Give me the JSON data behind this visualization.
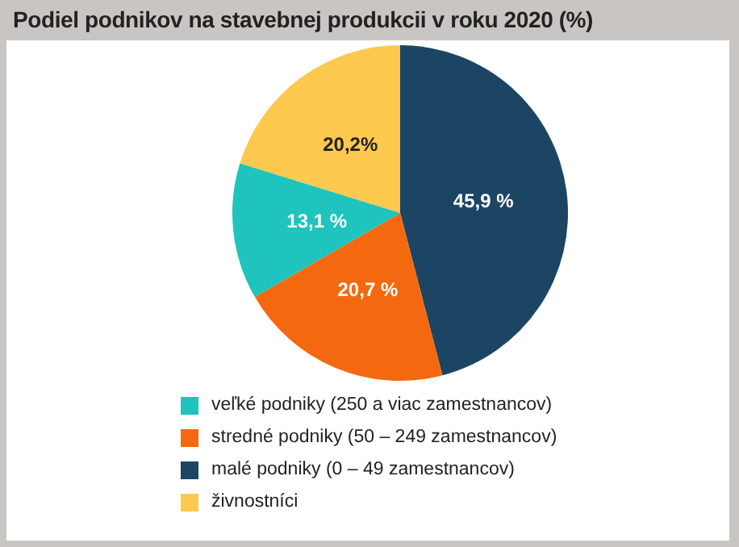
{
  "chart_data": {
    "type": "pie",
    "title": "Podiel podnikov na stavebnej produkcii v roku 2020 (%)",
    "categories": [
      "veľké podniky (250 a viac zamestnancov)",
      "stredné podniky (50 – 249 zamestnancov)",
      "malé podniky (0 – 49 zamestnancov)",
      "živnostníci"
    ],
    "values": [
      13.1,
      20.7,
      45.9,
      20.2
    ],
    "colors": [
      "#1ec4bd",
      "#f4690f",
      "#1c4563",
      "#fdc94f"
    ],
    "value_labels": [
      "13,1 %",
      "20,7 %",
      "45,9 %",
      "20,2%"
    ],
    "legend": "bottom"
  }
}
